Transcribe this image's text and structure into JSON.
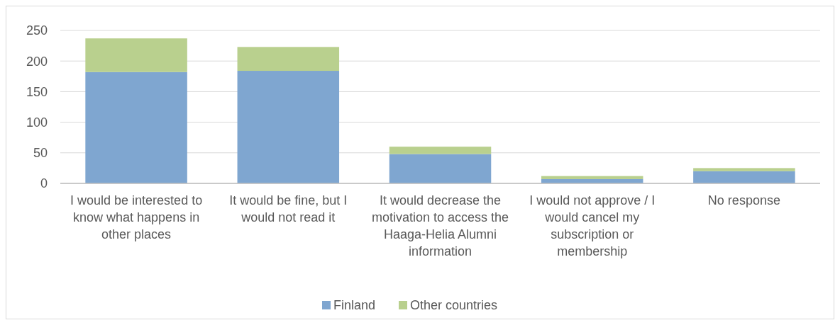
{
  "chart_data": {
    "type": "bar",
    "stacked": true,
    "categories": [
      "I would be interested to know what happens in other places",
      "It would be fine, but I would not read it",
      "It would decrease the motivation to access the Haaga-Helia Alumni information",
      "I would not approve / I would cancel my subscription or membership",
      "No response"
    ],
    "series": [
      {
        "name": "Finland",
        "color": "#7fa6d0",
        "values": [
          182,
          184,
          48,
          7,
          20
        ]
      },
      {
        "name": "Other countries",
        "color": "#b9d08e",
        "values": [
          55,
          39,
          12,
          5,
          5
        ]
      }
    ],
    "ylim": [
      0,
      250
    ],
    "yticks": [
      0,
      50,
      100,
      150,
      200,
      250
    ],
    "grid": "y",
    "legend": "bottom"
  }
}
